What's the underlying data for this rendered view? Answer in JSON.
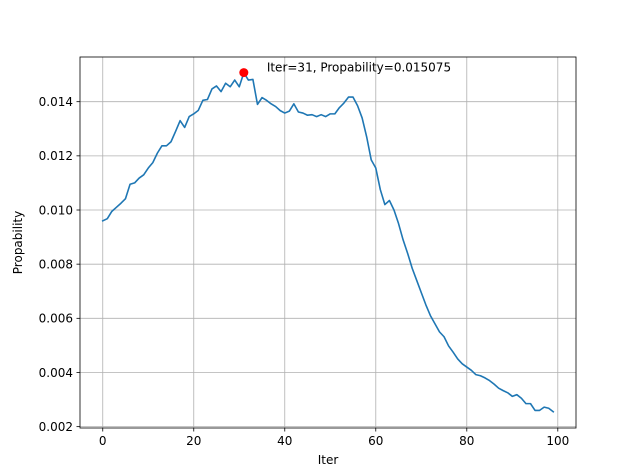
{
  "chart_data": {
    "type": "line",
    "title": "",
    "xlabel": "Iter",
    "ylabel": "Propability",
    "xlim": [
      -5,
      104
    ],
    "ylim": [
      0.00195,
      0.01565
    ],
    "xticks": [
      0,
      20,
      40,
      60,
      80,
      100
    ],
    "yticks": [
      0.002,
      0.004,
      0.006,
      0.008,
      0.01,
      0.012,
      0.014
    ],
    "ytick_labels": [
      "0.002",
      "0.004",
      "0.006",
      "0.008",
      "0.010",
      "0.012",
      "0.014"
    ],
    "grid": true,
    "line_color": "#1f77b4",
    "marker_color": "#ff0000",
    "series": [
      {
        "x": [
          0,
          1,
          2,
          3,
          4,
          5,
          6,
          7,
          8,
          9,
          10,
          11,
          12,
          13,
          14,
          15,
          16,
          17,
          18,
          19,
          20,
          21,
          22,
          23,
          24,
          25,
          26,
          27,
          28,
          29,
          30,
          31,
          32,
          33,
          34,
          35,
          36,
          37,
          38,
          39,
          40,
          41,
          42,
          43,
          44,
          45,
          46,
          47,
          48,
          49,
          50,
          51,
          52,
          53,
          54,
          55,
          56,
          57,
          58,
          59,
          60,
          61,
          62,
          63,
          64,
          65,
          66,
          67,
          68,
          69,
          70,
          71,
          72,
          73,
          74,
          75,
          76,
          77,
          78,
          79,
          80,
          81,
          82,
          83,
          84,
          85,
          86,
          87,
          88,
          89,
          90,
          91,
          92,
          93,
          94,
          95,
          96,
          97,
          98,
          99
        ],
        "values": [
          0.0096,
          0.00968,
          0.00995,
          0.0101,
          0.01025,
          0.01042,
          0.01095,
          0.011,
          0.01118,
          0.0113,
          0.01155,
          0.01175,
          0.0121,
          0.01237,
          0.01237,
          0.01252,
          0.0129,
          0.0133,
          0.01305,
          0.01345,
          0.01355,
          0.01368,
          0.01405,
          0.01408,
          0.01447,
          0.01458,
          0.01437,
          0.01468,
          0.01455,
          0.0148,
          0.01455,
          0.01507,
          0.0148,
          0.01482,
          0.0139,
          0.01415,
          0.01405,
          0.01392,
          0.01382,
          0.01367,
          0.01358,
          0.01365,
          0.01392,
          0.01362,
          0.01358,
          0.0135,
          0.01352,
          0.01345,
          0.01352,
          0.01345,
          0.01355,
          0.01355,
          0.01378,
          0.01395,
          0.01417,
          0.01417,
          0.01385,
          0.0134,
          0.0127,
          0.01185,
          0.01155,
          0.01075,
          0.0102,
          0.01035,
          0.01,
          0.0095,
          0.0089,
          0.0084,
          0.00785,
          0.0074,
          0.00695,
          0.0065,
          0.0061,
          0.0058,
          0.0055,
          0.00532,
          0.00498,
          0.00475,
          0.0045,
          0.00432,
          0.0042,
          0.00408,
          0.00392,
          0.00388,
          0.0038,
          0.0037,
          0.00357,
          0.00342,
          0.00333,
          0.00325,
          0.00312,
          0.00318,
          0.00305,
          0.00285,
          0.00285,
          0.0026,
          0.0026,
          0.00272,
          0.00268,
          0.00255
        ]
      }
    ],
    "max_point": {
      "x": 31,
      "y": 0.015075
    },
    "annotation": "Iter=31, Propability=0.015075"
  }
}
